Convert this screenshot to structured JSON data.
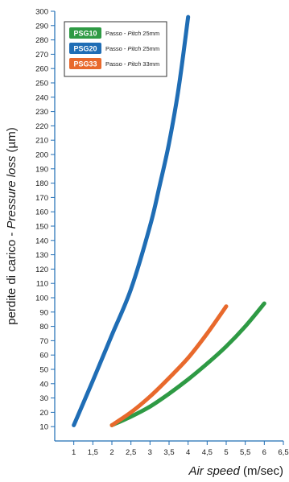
{
  "chart_data": {
    "type": "line",
    "xlabel": {
      "italic": "Air speed",
      "plain": " (m/sec)"
    },
    "ylabel": {
      "plain": "perdite di carico - ",
      "italic": "Pressure loss",
      "unit": " (µm)"
    },
    "x_ticks": [
      "1",
      "1,5",
      "2",
      "2,5",
      "3",
      "3,5",
      "4",
      "4,5",
      "5",
      "5,5",
      "6",
      "6,5"
    ],
    "y_ticks": [
      "10",
      "20",
      "30",
      "40",
      "50",
      "60",
      "70",
      "80",
      "90",
      "100",
      "110",
      "120",
      "130",
      "140",
      "150",
      "160",
      "170",
      "180",
      "190",
      "200",
      "210",
      "220",
      "230",
      "240",
      "250",
      "260",
      "270",
      "280",
      "290",
      "300"
    ],
    "xlim": [
      0.5,
      6.5
    ],
    "ylim": [
      0,
      300
    ],
    "grid": false,
    "legend_position": "top-left",
    "series": [
      {
        "name": "PSG10",
        "note_plain": "Passo - ",
        "note_italic": "Pitch",
        "note_value": " 25mm",
        "color": "#2e9a44",
        "x": [
          2.0,
          2.5,
          3.0,
          3.5,
          4.0,
          4.5,
          5.0,
          5.5,
          6.0
        ],
        "y": [
          11,
          17,
          24,
          33,
          43,
          54,
          66,
          80,
          96
        ]
      },
      {
        "name": "PSG20",
        "note_plain": "Passo - ",
        "note_italic": "Pitch",
        "note_value": " 25mm",
        "color": "#1f6db5",
        "x": [
          1.0,
          1.5,
          2.0,
          2.5,
          3.0,
          3.25,
          3.5,
          3.75,
          4.0
        ],
        "y": [
          11,
          42,
          74,
          106,
          150,
          178,
          208,
          246,
          296
        ]
      },
      {
        "name": "PSG33",
        "note_plain": "Passo - ",
        "note_italic": "Pitch",
        "note_value": " 33mm",
        "color": "#e8692c",
        "x": [
          2.0,
          2.5,
          3.0,
          3.5,
          4.0,
          4.5,
          5.0
        ],
        "y": [
          11,
          20,
          31,
          44,
          58,
          75,
          94
        ]
      }
    ]
  }
}
